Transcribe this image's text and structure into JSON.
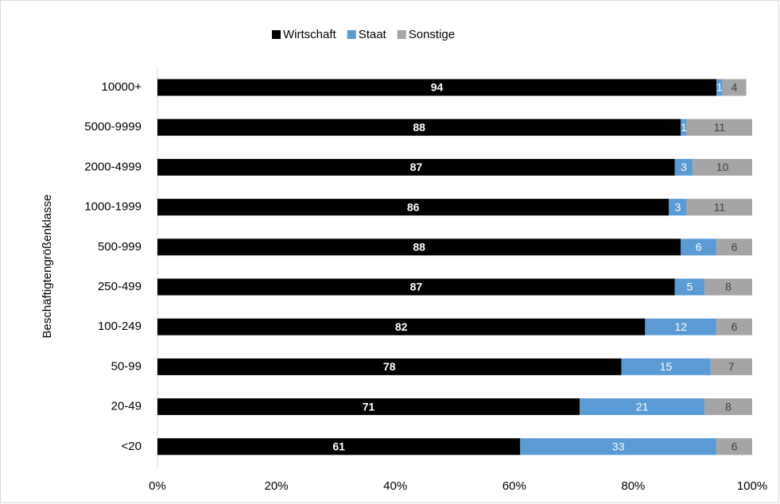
{
  "chart_data": {
    "type": "bar",
    "orientation": "horizontal",
    "stacked": true,
    "y_label": "Beschäftigtengrößenklasse",
    "categories": [
      "10000+",
      "5000-9999",
      "2000-4999",
      "1000-1999",
      "500-999",
      "250-499",
      "100-249",
      "50-99",
      "20-49",
      "<20"
    ],
    "series": [
      {
        "name": "Wirtschaft",
        "color": "#000000",
        "label_color": "#ffffff",
        "values": [
          94,
          88,
          87,
          86,
          88,
          87,
          82,
          78,
          71,
          61
        ]
      },
      {
        "name": "Staat",
        "color": "#5b9bd5",
        "label_color": "#ffffff",
        "values": [
          1,
          1,
          3,
          3,
          6,
          5,
          12,
          15,
          21,
          33
        ]
      },
      {
        "name": "Sonstige",
        "color": "#a5a5a5",
        "label_color": "#404040",
        "values": [
          4,
          11,
          10,
          11,
          6,
          8,
          6,
          7,
          8,
          6
        ]
      }
    ],
    "xlim": [
      0,
      100
    ],
    "xticks": [
      {
        "value": 0,
        "label": "0%"
      },
      {
        "value": 20,
        "label": "20%"
      },
      {
        "value": 40,
        "label": "40%"
      },
      {
        "value": 60,
        "label": "60%"
      },
      {
        "value": 80,
        "label": "80%"
      },
      {
        "value": 100,
        "label": "100%"
      }
    ],
    "legend": "top",
    "grid": false
  }
}
